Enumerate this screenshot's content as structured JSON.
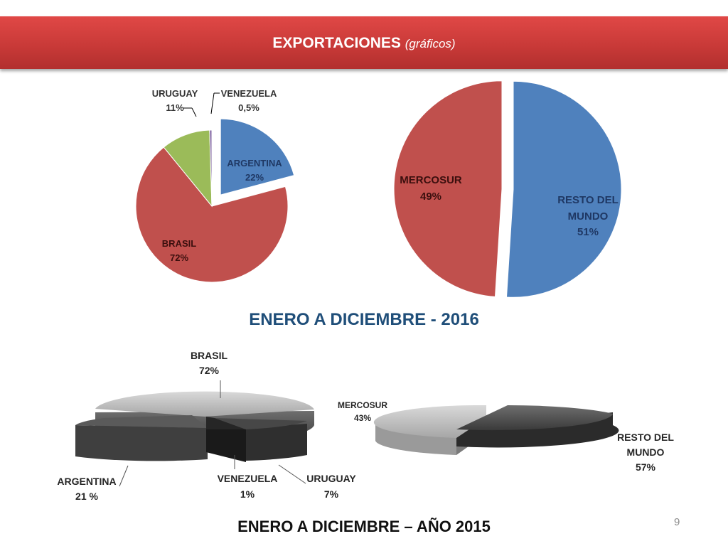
{
  "header": {
    "title": "EXPORTACIONES",
    "subtitle": "(gráficos)"
  },
  "period_2016": "ENERO A DICIEMBRE - 2016",
  "period_2015": "ENERO A DICIEMBRE – AÑO 2015",
  "page_number": "9",
  "chart_data": [
    {
      "type": "pie",
      "period": "2016",
      "categories": [
        "ARGENTINA",
        "BRASIL",
        "URUGUAY",
        "VENEZUELA"
      ],
      "values": [
        22,
        72,
        11,
        0.5
      ],
      "value_labels": [
        "22%",
        "72%",
        "11%",
        "0,5%"
      ],
      "colors": [
        "#4f81bd",
        "#c0504d",
        "#9bbb59",
        "#8064a2"
      ],
      "exploded": "ARGENTINA",
      "legend": "none, labels on slices"
    },
    {
      "type": "pie",
      "period": "2016",
      "categories": [
        "RESTO DEL MUNDO",
        "MERCOSUR"
      ],
      "values": [
        51,
        49
      ],
      "value_labels": [
        "51%",
        "49%"
      ],
      "colors": [
        "#4f81bd",
        "#c0504d"
      ],
      "exploded": "both",
      "legend": "none, labels on slices"
    },
    {
      "type": "pie",
      "period": "2015",
      "style": "3d",
      "categories": [
        "BRASIL",
        "ARGENTINA",
        "VENEZUELA",
        "URUGUAY"
      ],
      "values": [
        72,
        21,
        1,
        7
      ],
      "value_labels": [
        "72%",
        "21 %",
        "1%",
        "7%"
      ],
      "colors": [
        "#bfbfbf",
        "#595959",
        "#262626",
        "#404040"
      ],
      "legend": "none, labels outside with leader lines"
    },
    {
      "type": "pie",
      "period": "2015",
      "style": "3d",
      "categories": [
        "MERCOSUR",
        "RESTO DEL MUNDO"
      ],
      "values": [
        43,
        57
      ],
      "value_labels": [
        "43%",
        "57%"
      ],
      "colors": [
        "#bfbfbf",
        "#4d4d4d"
      ],
      "legend": "none, labels outside"
    }
  ]
}
